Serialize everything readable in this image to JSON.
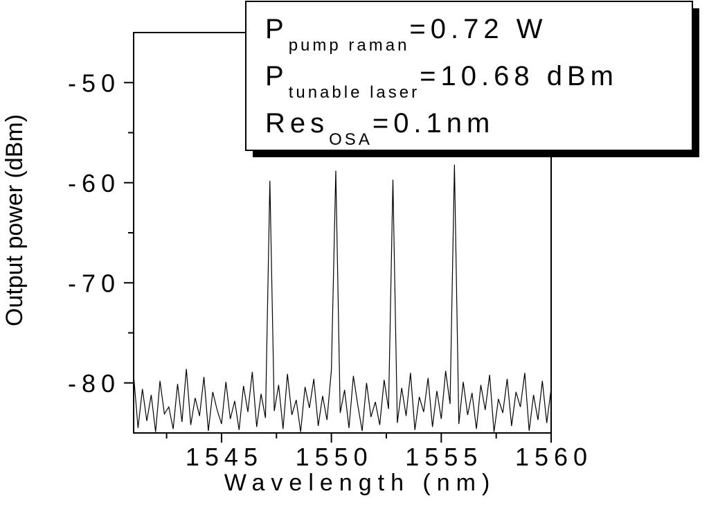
{
  "chart_data": {
    "type": "line",
    "x_label": "Wavelength (nm)",
    "y_label": "Output power (dBm)",
    "xlim": [
      1541,
      1560
    ],
    "ylim": [
      -85,
      -45
    ],
    "xticks": [
      1545,
      1550,
      1555,
      1560
    ],
    "yticks": [
      -50,
      -60,
      -70,
      -80
    ],
    "xminor_ticks": [
      1542.5,
      1547.5,
      1552.5,
      1557.5
    ],
    "yminor_ticks": [
      -55,
      -65,
      -75
    ],
    "annotations": [
      {
        "main": "P",
        "sub": "pump raman",
        "text": "=0.72 W"
      },
      {
        "main": "P",
        "sub": "tunable laser",
        "text": "=10.68 dBm"
      },
      {
        "main": "Res",
        "sub": "OSA",
        "text": "=0.1nm"
      }
    ],
    "series": [
      {
        "color": "#000000",
        "x": [
          1541.0,
          1541.2,
          1541.4,
          1541.6,
          1541.8,
          1542.0,
          1542.2,
          1542.4,
          1542.6,
          1542.8,
          1543.0,
          1543.2,
          1543.4,
          1543.6,
          1543.8,
          1544.0,
          1544.2,
          1544.4,
          1544.6,
          1544.8,
          1545.0,
          1545.2,
          1545.4,
          1545.6,
          1545.8,
          1546.0,
          1546.2,
          1546.4,
          1546.6,
          1546.8,
          1547.0,
          1547.2,
          1547.4,
          1547.6,
          1547.8,
          1548.0,
          1548.2,
          1548.4,
          1548.6,
          1548.8,
          1549.0,
          1549.2,
          1549.4,
          1549.6,
          1549.8,
          1550.0,
          1550.2,
          1550.4,
          1550.6,
          1550.8,
          1551.0,
          1551.2,
          1551.4,
          1551.6,
          1551.8,
          1552.0,
          1552.2,
          1552.4,
          1552.6,
          1552.8,
          1553.0,
          1553.2,
          1553.4,
          1553.6,
          1553.8,
          1554.0,
          1554.2,
          1554.4,
          1554.6,
          1554.8,
          1555.0,
          1555.2,
          1555.4,
          1555.6,
          1555.8,
          1556.0,
          1556.2,
          1556.4,
          1556.6,
          1556.8,
          1557.0,
          1557.2,
          1557.4,
          1557.6,
          1557.8,
          1558.0,
          1558.2,
          1558.4,
          1558.6,
          1558.8,
          1559.0,
          1559.2,
          1559.4,
          1559.6,
          1559.8,
          1560.0
        ],
        "values": [
          -79.2,
          -84.5,
          -80.6,
          -83.8,
          -81.2,
          -84.9,
          -79.8,
          -83.1,
          -82.4,
          -84.6,
          -80.1,
          -83.9,
          -78.6,
          -84.2,
          -81.5,
          -83.3,
          -79.4,
          -84.8,
          -80.9,
          -82.7,
          -84.1,
          -79.9,
          -83.6,
          -81.8,
          -84.7,
          -80.3,
          -82.9,
          -78.9,
          -84.4,
          -81.1,
          -83.5,
          -59.8,
          -82.8,
          -80.2,
          -84.6,
          -79.1,
          -83.2,
          -81.7,
          -84.9,
          -80.4,
          -82.5,
          -79.6,
          -84.3,
          -81.3,
          -83.7,
          -78.7,
          -58.8,
          -83.0,
          -80.7,
          -84.5,
          -79.3,
          -82.2,
          -84.8,
          -80.0,
          -83.4,
          -81.9,
          -84.2,
          -79.7,
          -82.6,
          -59.7,
          -84.0,
          -80.5,
          -83.3,
          -79.0,
          -84.7,
          -81.4,
          -82.9,
          -79.5,
          -84.4,
          -80.8,
          -83.6,
          -78.8,
          -82.1,
          -58.2,
          -84.1,
          -79.9,
          -83.2,
          -81.0,
          -84.6,
          -80.2,
          -82.7,
          -79.2,
          -84.9,
          -81.6,
          -83.0,
          -79.6,
          -84.3,
          -80.9,
          -82.4,
          -79.0,
          -84.8,
          -81.2,
          -83.7,
          -79.8,
          -84.0,
          -80.6
        ]
      }
    ]
  }
}
